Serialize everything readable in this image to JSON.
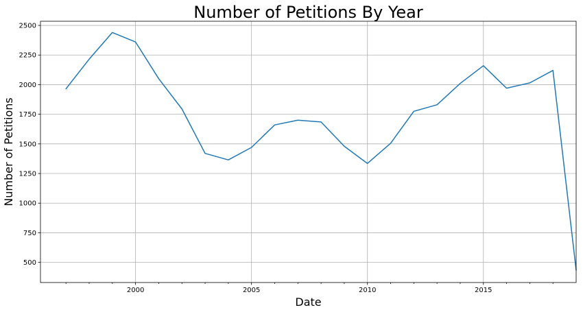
{
  "chart_data": {
    "type": "line",
    "title": "Number of Petitions By Year",
    "xlabel": "Date",
    "ylabel": "Number of Petitions",
    "xlim": [
      1995.9,
      2019
    ],
    "ylim": [
      330,
      2535
    ],
    "x_major_ticks": [
      2000,
      2005,
      2010,
      2015
    ],
    "x_major_tick_labels": [
      "2000",
      "2005",
      "2010",
      "2015"
    ],
    "x_minor_ticks": [
      1997,
      1998,
      1999,
      2001,
      2002,
      2003,
      2004,
      2006,
      2007,
      2008,
      2009,
      2011,
      2012,
      2013,
      2014,
      2016,
      2017,
      2018
    ],
    "y_ticks": [
      500,
      750,
      1000,
      1250,
      1500,
      1750,
      2000,
      2250,
      2500
    ],
    "y_tick_labels": [
      "500",
      "750",
      "1000",
      "1250",
      "1500",
      "1750",
      "2000",
      "2250",
      "2500"
    ],
    "grid": true,
    "color": "#1f77b4",
    "series": [
      {
        "x": [
          1997,
          1998,
          1999,
          2000,
          2001,
          2002,
          2003,
          2004,
          2005,
          2006,
          2007,
          2008,
          2009,
          2010,
          2011,
          2012,
          2013,
          2014,
          2015,
          2016,
          2017,
          2018,
          2019
        ],
        "values": [
          1965,
          2215,
          2440,
          2360,
          2050,
          1795,
          1420,
          1365,
          1470,
          1660,
          1700,
          1685,
          1480,
          1335,
          1505,
          1775,
          1830,
          2010,
          2160,
          1970,
          2015,
          2120,
          435
        ]
      }
    ]
  }
}
